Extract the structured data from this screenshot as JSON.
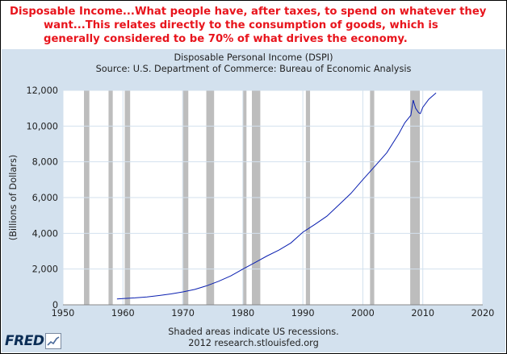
{
  "headline": "Disposable Income...What people have, after taxes, to spend on whatever they want...This relates directly to the consumption of goods, which is generally considered to be 70% of what drives the economy.",
  "notes": {
    "line1": "Shaded areas indicate US recessions.",
    "line2": "2012 research.stlouisfed.org"
  },
  "logo": {
    "text": "FRED",
    "icon": "chart-line-icon"
  },
  "colors": {
    "headline": "#e8141c",
    "panel": "#d3e1ee",
    "series": "#0a1fb0",
    "recession": "#bdbdbd",
    "grid": "#d3e1ee"
  },
  "chart_data": {
    "type": "line",
    "title": "Disposable Personal Income (DSPI)",
    "subtitle": "Source: U.S. Department of Commerce: Bureau of Economic Analysis",
    "xlabel": "",
    "ylabel": "(Billions of Dollars)",
    "xlim": [
      1950,
      2020
    ],
    "ylim": [
      0,
      12000
    ],
    "x_ticks": [
      1950,
      1960,
      1970,
      1980,
      1990,
      2000,
      2010,
      2020
    ],
    "y_ticks": [
      0,
      2000,
      4000,
      6000,
      8000,
      10000,
      12000
    ],
    "y_tick_labels": [
      "0",
      "2,000",
      "4,000",
      "6,000",
      "8,000",
      "10,000",
      "12,000"
    ],
    "grid": true,
    "recessions": [
      [
        1953.5,
        1954.4
      ],
      [
        1957.6,
        1958.3
      ],
      [
        1960.3,
        1961.2
      ],
      [
        1969.9,
        1970.9
      ],
      [
        1973.9,
        1975.2
      ],
      [
        1980.0,
        1980.6
      ],
      [
        1981.5,
        1982.9
      ],
      [
        1990.5,
        1991.2
      ],
      [
        2001.2,
        2001.9
      ],
      [
        2007.9,
        2009.5
      ]
    ],
    "series": [
      {
        "x": [
          1959,
          1960,
          1962,
          1964,
          1966,
          1968,
          1970,
          1972,
          1974,
          1976,
          1978,
          1980,
          1982,
          1984,
          1986,
          1988,
          1990,
          1992,
          1994,
          1996,
          1998,
          2000,
          2002,
          2004,
          2006,
          2007,
          2008,
          2008.4,
          2008.8,
          2009.3,
          2009.6,
          2010,
          2011,
          2012.2
        ],
        "values": [
          330,
          350,
          390,
          440,
          520,
          610,
          720,
          860,
          1070,
          1320,
          1620,
          2000,
          2360,
          2730,
          3060,
          3460,
          4060,
          4500,
          4960,
          5590,
          6230,
          7000,
          7750,
          8510,
          9570,
          10180,
          10600,
          11450,
          11000,
          10750,
          10700,
          11050,
          11500,
          11850
        ]
      }
    ]
  }
}
